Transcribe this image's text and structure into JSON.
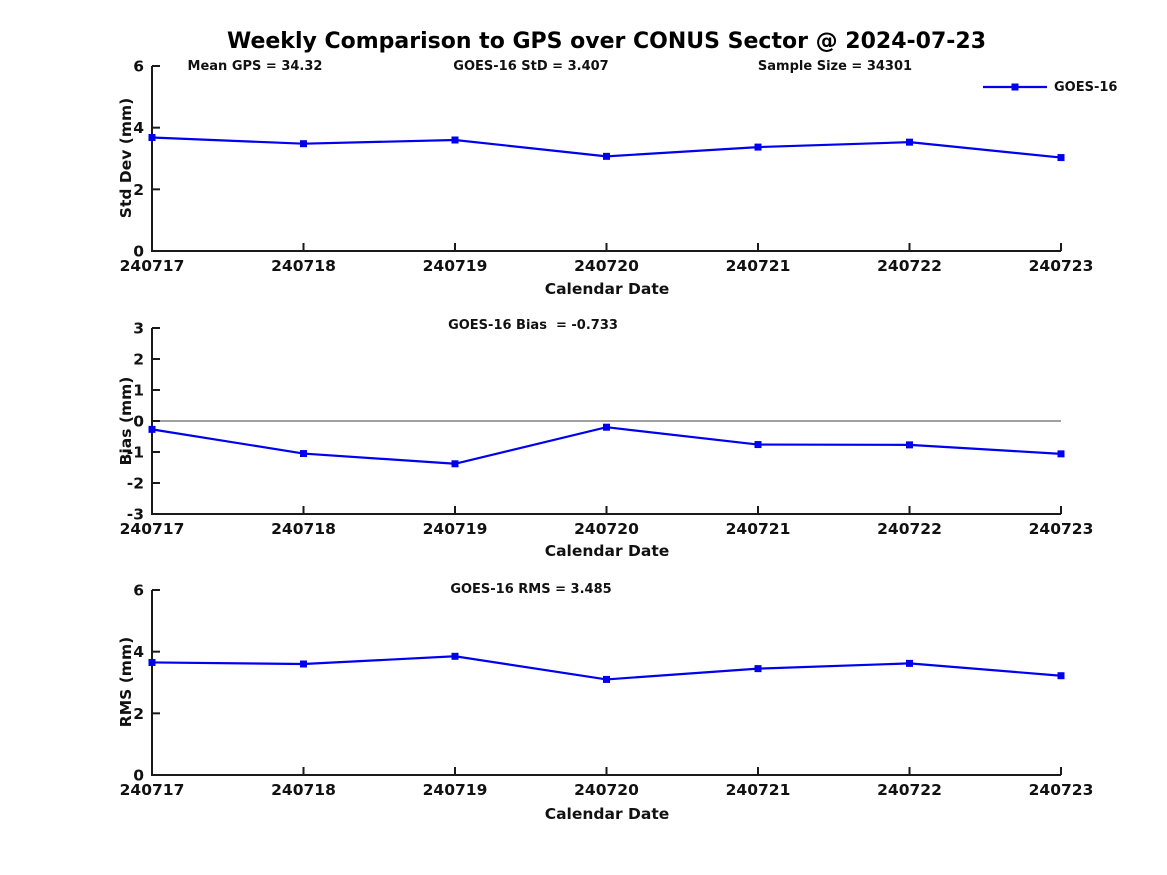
{
  "title": "Weekly Comparison to GPS over CONUS Sector @ 2024-07-23",
  "legend": {
    "label": "GOES-16"
  },
  "colors": {
    "series": "#0000ee",
    "axis": "#1a1a1a",
    "zero_line": "#808080",
    "text": "#111111",
    "background": "#ffffff"
  },
  "chart_data": [
    {
      "type": "line",
      "ylabel": "Std Dev (mm)",
      "xlabel": "Calendar Date",
      "ylim": [
        0,
        6
      ],
      "yticks": [
        0,
        2,
        4,
        6
      ],
      "categories": [
        "240717",
        "240718",
        "240719",
        "240720",
        "240721",
        "240722",
        "240723"
      ],
      "series": [
        {
          "name": "GOES-16",
          "values": [
            3.68,
            3.48,
            3.6,
            3.07,
            3.37,
            3.53,
            3.03
          ]
        }
      ],
      "annotations": [
        {
          "text": "Mean GPS = 34.32"
        },
        {
          "text": "GOES-16 StD = 3.407"
        },
        {
          "text": "Sample Size = 34301"
        }
      ],
      "legend_position": "top-right",
      "grid": false
    },
    {
      "type": "line",
      "ylabel": "Bias (mm)",
      "xlabel": "Calendar Date",
      "ylim": [
        -3,
        3
      ],
      "yticks": [
        3,
        2,
        1,
        0,
        -1,
        -2,
        -3
      ],
      "categories": [
        "240717",
        "240718",
        "240719",
        "240720",
        "240721",
        "240722",
        "240723"
      ],
      "series": [
        {
          "name": "GOES-16",
          "values": [
            -0.27,
            -1.05,
            -1.38,
            -0.2,
            -0.76,
            -0.77,
            -1.06
          ]
        }
      ],
      "annotations": [
        {
          "text": "GOES-16 Bias  = -0.733"
        }
      ],
      "zero_line": true,
      "grid": false
    },
    {
      "type": "line",
      "ylabel": "RMS (mm)",
      "xlabel": "Calendar Date",
      "ylim": [
        0,
        6
      ],
      "yticks": [
        0,
        2,
        4,
        6
      ],
      "categories": [
        "240717",
        "240718",
        "240719",
        "240720",
        "240721",
        "240722",
        "240723"
      ],
      "series": [
        {
          "name": "GOES-16",
          "values": [
            3.65,
            3.6,
            3.85,
            3.1,
            3.45,
            3.62,
            3.22
          ]
        }
      ],
      "annotations": [
        {
          "text": "GOES-16 RMS = 3.485"
        }
      ],
      "grid": false
    }
  ]
}
